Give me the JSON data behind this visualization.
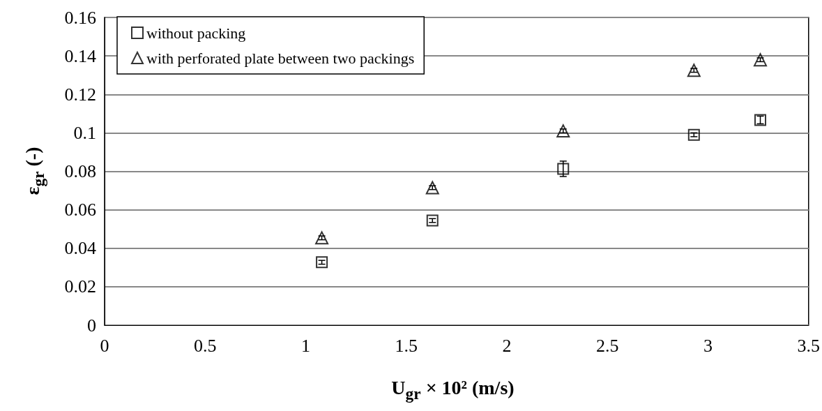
{
  "chart_data": {
    "type": "scatter",
    "xlabel": "U$_{gr}$ × 10² (m/s)",
    "ylabel": "ε$_{gr}$ (-)",
    "x": [
      1.08,
      1.63,
      2.28,
      2.93,
      3.26
    ],
    "series": [
      {
        "name": "without packing",
        "color": "#000000",
        "marker": "square",
        "values": [
          0.0327,
          0.0544,
          0.0813,
          0.099,
          0.1067
        ],
        "errors": [
          0.001,
          0.001,
          0.004,
          0.001,
          0.002
        ]
      },
      {
        "name": "with perforated plate between two packings",
        "color": "#000000",
        "marker": "triangle",
        "values": [
          0.0454,
          0.0715,
          0.101,
          0.1325,
          0.138
        ],
        "errors": [
          0.001,
          0.001,
          0.001,
          0.001,
          0.001
        ]
      }
    ],
    "xlim": [
      0,
      3.5
    ],
    "xticks": [
      0,
      0.5,
      1,
      1.5,
      2,
      2.5,
      3,
      3.5
    ],
    "ylim": [
      0,
      0.16
    ],
    "yticks": [
      0,
      0.02,
      0.04,
      0.06,
      0.08,
      0.1,
      0.12,
      0.14,
      0.16
    ],
    "grid": "y",
    "legend": "top left"
  }
}
